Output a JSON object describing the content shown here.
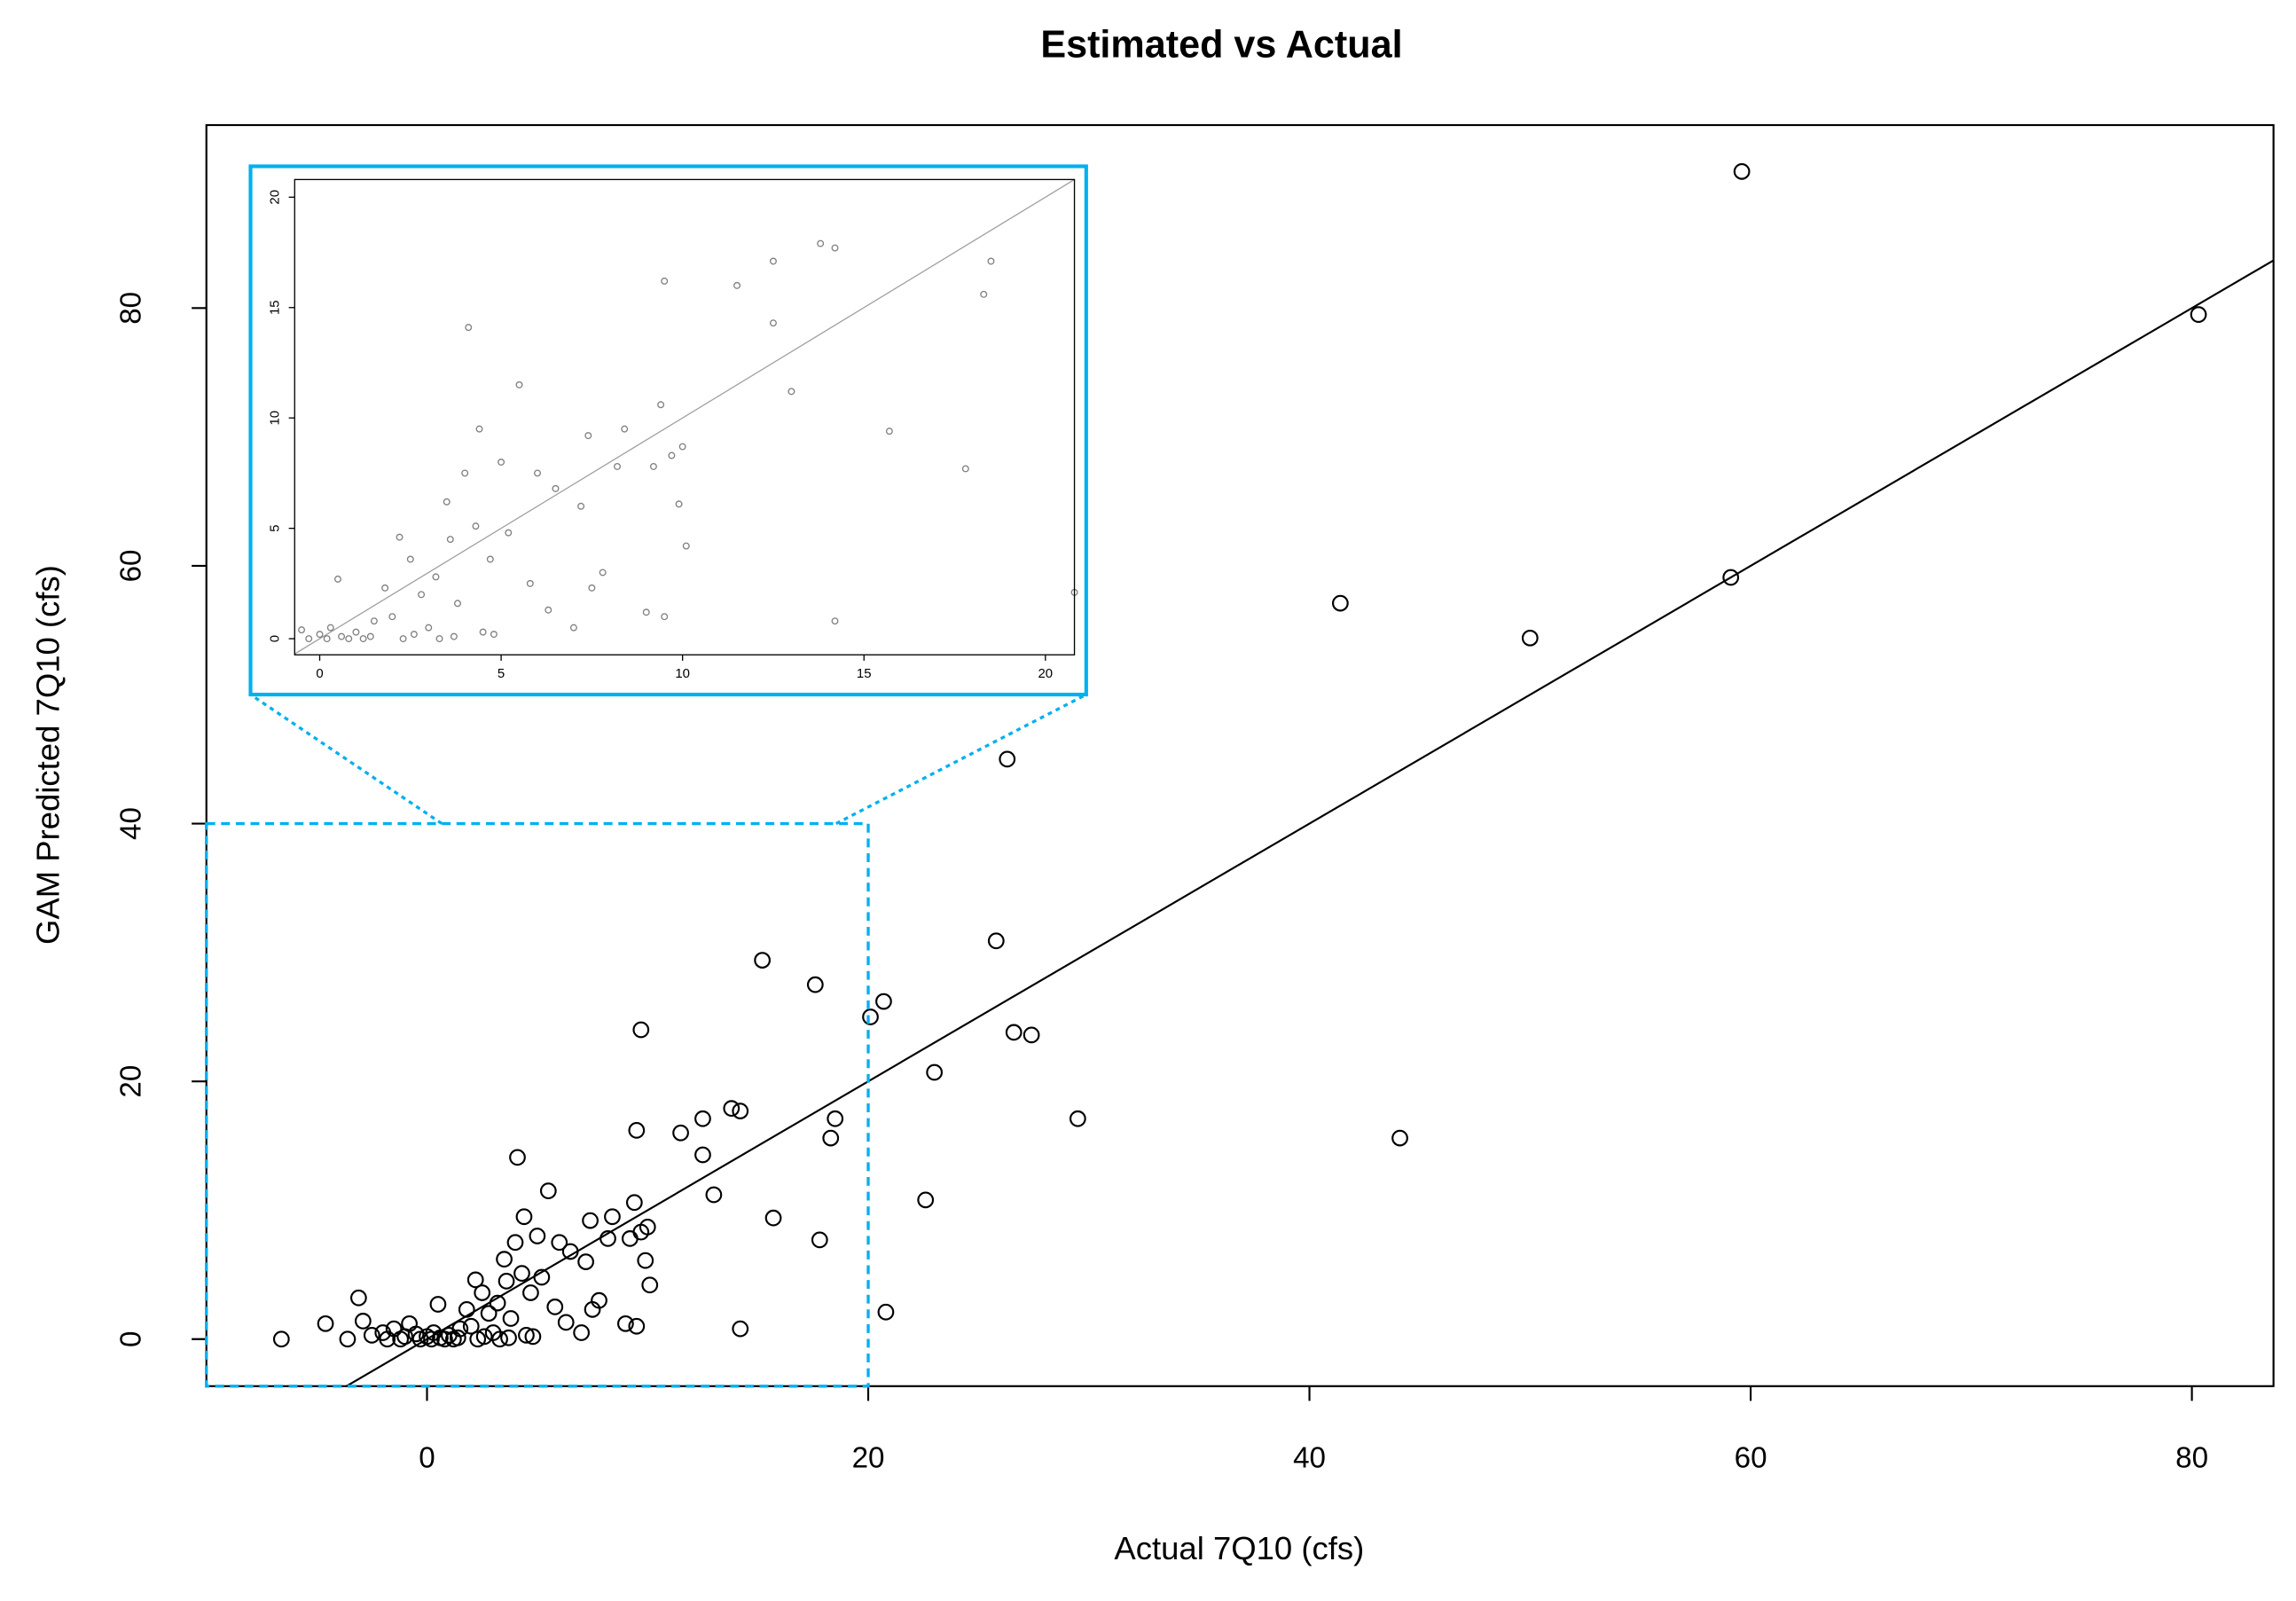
{
  "chart_data": {
    "type": "scatter",
    "title": "Estimated vs Actual",
    "x_label": "Actual 7Q10 (cfs)",
    "y_label": "GAM Predicted 7Q10 (cfs)",
    "xlim": [
      -10,
      83.7
    ],
    "ylim": [
      -3.65,
      94.2
    ],
    "xticks": [
      0,
      20,
      40,
      60,
      80
    ],
    "yticks": [
      0,
      20,
      40,
      60,
      80
    ],
    "color": "#000000",
    "reference_line": {
      "slope": 1,
      "intercept": 0,
      "color": "#000000"
    },
    "zoom_box": {
      "x": [
        -10,
        20
      ],
      "y": [
        -3.65,
        40
      ],
      "color": "#00b0f0"
    },
    "inset": {
      "xlim": [
        -0.69,
        20.8
      ],
      "ylim": [
        -0.73,
        20.8
      ],
      "xticks": [
        0,
        5,
        10,
        15,
        20
      ],
      "yticks": [
        0,
        5,
        10,
        15,
        20
      ],
      "color": "#808080",
      "line_color": "#a0a0a0"
    },
    "x": [
      -6.6,
      -4.6,
      -3.6,
      -3.1,
      -2.9,
      -2.5,
      -2,
      -1.5,
      -1,
      -0.8,
      -0.5,
      0,
      0.3,
      0.5,
      0.8,
      1,
      1.5,
      1.8,
      2,
      2.2,
      2.5,
      2.8,
      3,
      3.2,
      3.5,
      3.8,
      4,
      4.1,
      4.3,
      4.4,
      4.7,
      5,
      5.2,
      5.5,
      5.8,
      6,
      6.3,
      6.5,
      7,
      7.2,
      7.4,
      7.5,
      7.8,
      8.2,
      8.4,
      9,
      9.2,
      9.4,
      9.5,
      9.5,
      9.7,
      9.7,
      9.9,
      10,
      10.1,
      11.5,
      12.5,
      12.5,
      13,
      13.8,
      14.2,
      14.2,
      15.2,
      15.7,
      17.6,
      17.8,
      18.3,
      18.5,
      20.1,
      20.7,
      20.8,
      22.6,
      23,
      25.8,
      26.3,
      26.6,
      27.4,
      29.5,
      41.4,
      44.1,
      50,
      59.1,
      59.6,
      80.3,
      -1.8,
      -1.2,
      -0.3,
      0.2,
      0.6,
      1.2,
      1.4,
      2.3,
      2.6,
      3.3,
      3.7,
      4.5,
      4.8,
      3.6
    ],
    "values": [
      0,
      1.2,
      0,
      3.2,
      1.4,
      0.3,
      0.5,
      0.8,
      0.2,
      1.2,
      0.4,
      0.2,
      0.5,
      2.7,
      0,
      0.3,
      0.8,
      2.3,
      1,
      4.6,
      3.6,
      2,
      0.5,
      2.8,
      6.2,
      1.6,
      7.5,
      14.1,
      5.1,
      9.5,
      3.6,
      8,
      4.8,
      11.5,
      2.5,
      7.5,
      1.3,
      6.8,
      0.5,
      6,
      9.2,
      2.3,
      3,
      7.8,
      9.5,
      1.2,
      7.8,
      10.6,
      1,
      16.2,
      24,
      8.3,
      6.1,
      8.7,
      4.2,
      16,
      14.3,
      17.1,
      11.2,
      17.9,
      17.7,
      0.8,
      29.4,
      9.4,
      27.5,
      7.7,
      15.6,
      17.1,
      25,
      26.2,
      2.1,
      10.8,
      20.7,
      30.9,
      45,
      23.8,
      23.6,
      17.1,
      57.1,
      15.6,
      54.4,
      59.1,
      90.6,
      79.5,
      0,
      0,
      0,
      0,
      0.1,
      0,
      0.1,
      0,
      0.2,
      0,
      0.1,
      0.3,
      0.2,
      4.5
    ]
  }
}
